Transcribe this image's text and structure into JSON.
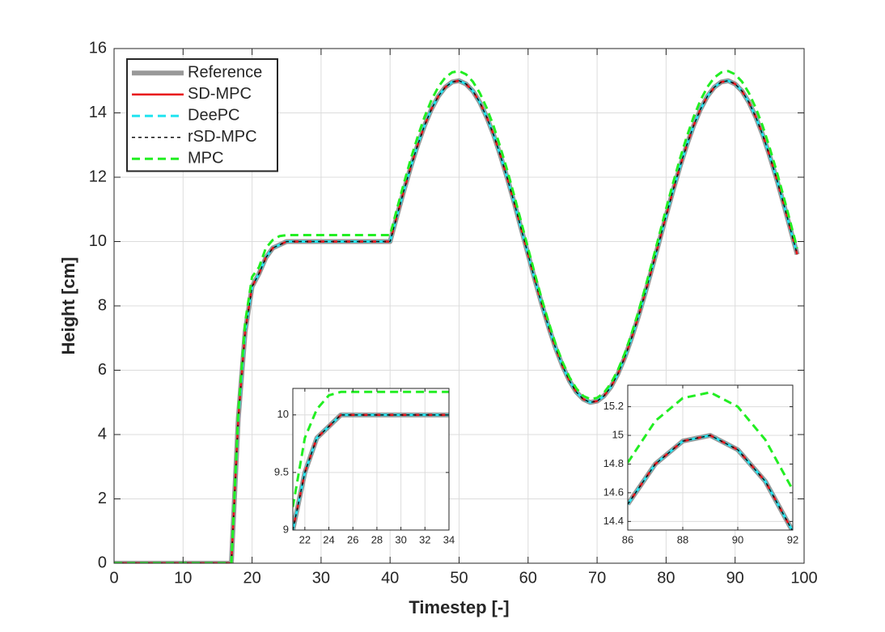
{
  "chart_data": [
    {
      "type": "line",
      "xlabel": "Timestep [-]",
      "ylabel": "Height [cm]",
      "legend": "upper left",
      "grid": true,
      "xlim": [
        0,
        100
      ],
      "ylim": [
        0,
        16
      ],
      "xticks": [
        0,
        10,
        20,
        30,
        40,
        50,
        60,
        70,
        80,
        90,
        100
      ],
      "yticks": [
        0,
        2,
        4,
        6,
        8,
        10,
        12,
        14,
        16
      ],
      "x": [
        0,
        1,
        2,
        3,
        4,
        5,
        6,
        7,
        8,
        9,
        10,
        11,
        12,
        13,
        14,
        15,
        16,
        17,
        18,
        19,
        20,
        21,
        22,
        23,
        24,
        25,
        26,
        27,
        28,
        29,
        30,
        31,
        32,
        33,
        34,
        35,
        36,
        37,
        38,
        39,
        40,
        41,
        42,
        43,
        44,
        45,
        46,
        47,
        48,
        49,
        50,
        51,
        52,
        53,
        54,
        55,
        56,
        57,
        58,
        59,
        60,
        61,
        62,
        63,
        64,
        65,
        66,
        67,
        68,
        69,
        70,
        71,
        72,
        73,
        74,
        75,
        76,
        77,
        78,
        79,
        80,
        81,
        82,
        83,
        84,
        85,
        86,
        87,
        88,
        89,
        90,
        91,
        92,
        93,
        94,
        95,
        96,
        97,
        98,
        99
      ],
      "series": [
        {
          "name": "Reference",
          "color": "#999999",
          "linewidth": 6,
          "linestyle": "solid",
          "values": [
            0,
            0,
            0,
            0,
            0,
            0,
            0,
            0,
            0,
            0,
            0,
            0,
            0,
            0,
            0,
            0,
            0,
            0,
            4.5,
            7.2,
            8.6,
            9,
            9.5,
            9.8,
            9.9,
            10,
            10,
            10,
            10,
            10,
            10,
            10,
            10,
            10,
            10,
            10,
            10,
            10,
            10,
            10,
            10,
            10.8,
            11.58,
            12.32,
            13,
            13.61,
            14.12,
            14.52,
            14.8,
            14.96,
            15,
            14.9,
            14.68,
            14.33,
            13.87,
            13.32,
            12.67,
            11.96,
            11.2,
            10.4,
            9.6,
            8.8,
            8.04,
            7.33,
            6.68,
            6.13,
            5.67,
            5.32,
            5.1,
            5,
            5.04,
            5.2,
            5.48,
            5.88,
            6.39,
            7,
            7.68,
            8.42,
            9.2,
            10,
            10.8,
            11.58,
            12.32,
            13,
            13.61,
            14.12,
            14.52,
            14.8,
            14.96,
            15,
            14.9,
            14.68,
            14.33,
            13.87,
            13.32,
            12.67,
            11.96,
            11.2,
            10.4,
            9.6
          ]
        },
        {
          "name": "SD-MPC",
          "color": "#e8141b",
          "linewidth": 2.5,
          "linestyle": "solid",
          "values": [
            0,
            0,
            0,
            0,
            0,
            0,
            0,
            0,
            0,
            0,
            0,
            0,
            0,
            0,
            0,
            0,
            0,
            0,
            4.5,
            7.2,
            8.6,
            9,
            9.5,
            9.8,
            9.9,
            10,
            10,
            10,
            10,
            10,
            10,
            10,
            10,
            10,
            10,
            10,
            10,
            10,
            10,
            10,
            10,
            10.8,
            11.58,
            12.32,
            13,
            13.61,
            14.12,
            14.52,
            14.8,
            14.96,
            15,
            14.9,
            14.68,
            14.33,
            13.87,
            13.32,
            12.67,
            11.96,
            11.2,
            10.4,
            9.6,
            8.8,
            8.04,
            7.33,
            6.68,
            6.13,
            5.67,
            5.32,
            5.1,
            5,
            5.04,
            5.2,
            5.48,
            5.88,
            6.39,
            7,
            7.68,
            8.42,
            9.2,
            10,
            10.8,
            11.58,
            12.32,
            13,
            13.61,
            14.12,
            14.52,
            14.8,
            14.96,
            15,
            14.9,
            14.68,
            14.33,
            13.87,
            13.32,
            12.67,
            11.96,
            11.2,
            10.4,
            9.6
          ]
        },
        {
          "name": "DeePC",
          "color": "#22e4f0",
          "linewidth": 3,
          "linestyle": "dashed",
          "values": [
            0,
            0,
            0,
            0,
            0,
            0,
            0,
            0,
            0,
            0,
            0,
            0,
            0,
            0,
            0,
            0,
            0,
            0,
            4.5,
            7.2,
            8.6,
            9,
            9.5,
            9.8,
            9.9,
            10,
            10,
            10,
            10,
            10,
            10,
            10,
            10,
            10,
            10,
            10,
            10,
            10,
            10,
            10,
            10,
            10.8,
            11.58,
            12.32,
            13,
            13.61,
            14.12,
            14.52,
            14.8,
            14.96,
            15,
            14.9,
            14.68,
            14.33,
            13.87,
            13.32,
            12.67,
            11.96,
            11.2,
            10.4,
            9.6,
            8.8,
            8.04,
            7.33,
            6.68,
            6.13,
            5.67,
            5.32,
            5.1,
            5,
            5.04,
            5.2,
            5.48,
            5.88,
            6.39,
            7,
            7.68,
            8.42,
            9.2,
            10,
            10.8,
            11.58,
            12.32,
            13,
            13.61,
            14.12,
            14.52,
            14.8,
            14.96,
            15,
            14.9,
            14.68,
            14.33,
            13.87,
            13.32,
            12.67,
            11.96,
            11.2,
            10.4,
            9.6
          ]
        },
        {
          "name": "rSD-MPC",
          "color": "#111111",
          "linewidth": 1.5,
          "linestyle": "dotted",
          "values": [
            0,
            0,
            0,
            0,
            0,
            0,
            0,
            0,
            0,
            0,
            0,
            0,
            0,
            0,
            0,
            0,
            0,
            0,
            4.5,
            7.2,
            8.6,
            9,
            9.5,
            9.8,
            9.9,
            10,
            10,
            10,
            10,
            10,
            10,
            10,
            10,
            10,
            10,
            10,
            10,
            10,
            10,
            10,
            10,
            10.8,
            11.58,
            12.32,
            13,
            13.61,
            14.12,
            14.52,
            14.8,
            14.96,
            15,
            14.9,
            14.68,
            14.33,
            13.87,
            13.32,
            12.67,
            11.96,
            11.2,
            10.4,
            9.6,
            8.8,
            8.04,
            7.33,
            6.68,
            6.13,
            5.67,
            5.32,
            5.1,
            5,
            5.04,
            5.2,
            5.48,
            5.88,
            6.39,
            7,
            7.68,
            8.42,
            9.2,
            10,
            10.8,
            11.58,
            12.32,
            13,
            13.61,
            14.12,
            14.52,
            14.8,
            14.96,
            15,
            14.9,
            14.68,
            14.33,
            13.87,
            13.32,
            12.67,
            11.96,
            11.2,
            10.4,
            9.6
          ]
        },
        {
          "name": "MPC",
          "color": "#22ee22",
          "linewidth": 3,
          "linestyle": "dashed",
          "values": [
            0,
            0,
            0,
            0,
            0,
            0,
            0,
            0,
            0,
            0,
            0,
            0,
            0,
            0,
            0,
            0,
            0,
            0,
            4.7,
            7.5,
            8.9,
            9.2,
            9.8,
            10.05,
            10.17,
            10.2,
            10.2,
            10.2,
            10.2,
            10.2,
            10.2,
            10.2,
            10.2,
            10.2,
            10.2,
            10.2,
            10.2,
            10.2,
            10.2,
            10.2,
            10.2,
            11.02,
            11.81,
            12.57,
            13.26,
            13.88,
            14.4,
            14.81,
            15.1,
            15.26,
            15.3,
            15.2,
            14.97,
            14.62,
            14.15,
            13.59,
            12.92,
            12.2,
            11.42,
            10.61,
            9.79,
            8.98,
            8.2,
            7.48,
            6.81,
            6.25,
            5.78,
            5.43,
            5.2,
            5.1,
            5.14,
            5.3,
            5.59,
            6,
            6.52,
            7.14,
            7.83,
            8.59,
            9.38,
            10.2,
            11.02,
            11.81,
            12.57,
            13.26,
            13.88,
            14.4,
            14.81,
            15.1,
            15.26,
            15.3,
            15.2,
            14.97,
            14.62,
            14.15,
            13.59,
            12.92,
            12.2,
            11.42,
            10.61,
            9.79
          ]
        }
      ]
    },
    {
      "type": "line",
      "grid": true,
      "xlim": [
        21,
        34
      ],
      "ylim": [
        9,
        10.23
      ],
      "xticks": [
        22,
        24,
        26,
        28,
        30,
        32,
        34
      ],
      "yticks": [
        9,
        9.5,
        10
      ],
      "x": [
        21,
        22,
        23,
        24,
        25,
        26,
        27,
        28,
        29,
        30,
        31,
        32,
        33,
        34
      ],
      "series": [
        {
          "color": "#999999",
          "linewidth": 6,
          "linestyle": "solid",
          "values": [
            9,
            9.5,
            9.8,
            9.9,
            10,
            10,
            10,
            10,
            10,
            10,
            10,
            10,
            10,
            10
          ]
        },
        {
          "color": "#e8141b",
          "linewidth": 2.5,
          "linestyle": "solid",
          "values": [
            9,
            9.5,
            9.8,
            9.9,
            10,
            10,
            10,
            10,
            10,
            10,
            10,
            10,
            10,
            10
          ]
        },
        {
          "color": "#22e4f0",
          "linewidth": 3,
          "linestyle": "dashed",
          "values": [
            9,
            9.5,
            9.8,
            9.9,
            10,
            10,
            10,
            10,
            10,
            10,
            10,
            10,
            10,
            10
          ]
        },
        {
          "color": "#111111",
          "linewidth": 1.5,
          "linestyle": "dotted",
          "values": [
            9,
            9.5,
            9.8,
            9.9,
            10,
            10,
            10,
            10,
            10,
            10,
            10,
            10,
            10,
            10
          ]
        },
        {
          "color": "#22ee22",
          "linewidth": 3,
          "linestyle": "dashed",
          "values": [
            9.2,
            9.8,
            10.05,
            10.17,
            10.2,
            10.2,
            10.2,
            10.2,
            10.2,
            10.2,
            10.2,
            10.2,
            10.2,
            10.2
          ]
        }
      ]
    },
    {
      "type": "line",
      "grid": true,
      "xlim": [
        86,
        92
      ],
      "ylim": [
        14.34,
        15.35
      ],
      "xticks": [
        86,
        88,
        90,
        92
      ],
      "yticks": [
        14.4,
        14.6,
        14.8,
        15,
        15.2
      ],
      "x": [
        86,
        87,
        88,
        89,
        90,
        91,
        92
      ],
      "series": [
        {
          "color": "#999999",
          "linewidth": 6,
          "linestyle": "solid",
          "values": [
            14.52,
            14.8,
            14.96,
            15,
            14.9,
            14.68,
            14.33
          ]
        },
        {
          "color": "#e8141b",
          "linewidth": 2.5,
          "linestyle": "solid",
          "values": [
            14.52,
            14.8,
            14.96,
            15,
            14.9,
            14.68,
            14.33
          ]
        },
        {
          "color": "#22e4f0",
          "linewidth": 3,
          "linestyle": "dashed",
          "values": [
            14.52,
            14.8,
            14.96,
            15,
            14.9,
            14.68,
            14.33
          ]
        },
        {
          "color": "#111111",
          "linewidth": 1.5,
          "linestyle": "dotted",
          "values": [
            14.52,
            14.8,
            14.96,
            15,
            14.9,
            14.68,
            14.33
          ]
        },
        {
          "color": "#22ee22",
          "linewidth": 3,
          "linestyle": "dashed",
          "values": [
            14.81,
            15.1,
            15.26,
            15.3,
            15.2,
            14.97,
            14.62
          ]
        }
      ]
    }
  ]
}
